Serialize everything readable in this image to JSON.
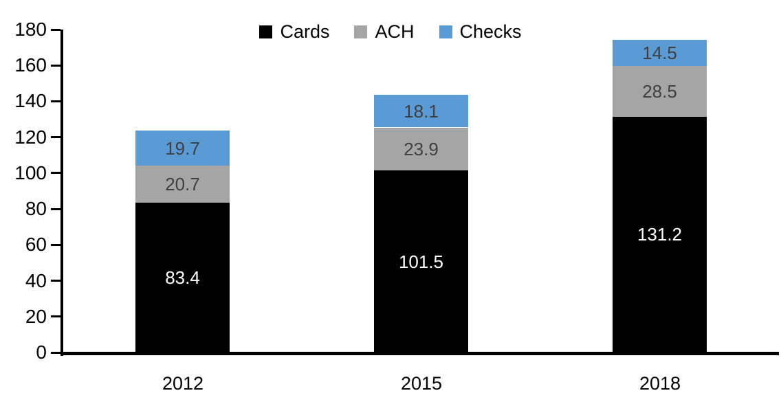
{
  "chart_data": {
    "type": "bar",
    "stacked": true,
    "title": "",
    "xlabel": "",
    "ylabel": "",
    "categories": [
      "2012",
      "2015",
      "2018"
    ],
    "series": [
      {
        "name": "Cards",
        "color": "#000000",
        "label_color": "#FFFFFF",
        "values": [
          83.4,
          101.5,
          131.2
        ]
      },
      {
        "name": "ACH",
        "color": "#A5A5A5",
        "label_color": "#404040",
        "values": [
          20.7,
          23.9,
          28.5
        ]
      },
      {
        "name": "Checks",
        "color": "#5B9BD5",
        "label_color": "#404040",
        "values": [
          19.7,
          18.1,
          14.5
        ]
      }
    ],
    "value_labels": {
      "Cards": [
        "83.4",
        "101.5",
        "131.2"
      ],
      "ACH": [
        "20.7",
        "23.9",
        "28.5"
      ],
      "Checks": [
        "19.7",
        "18.1",
        "14.5"
      ]
    },
    "ylim": [
      0,
      180
    ],
    "yticks": [
      0,
      20,
      40,
      60,
      80,
      100,
      120,
      140,
      160,
      180
    ],
    "legend_position": "top",
    "legend_labels": [
      "Cards",
      "ACH",
      "Checks"
    ],
    "grid": false,
    "axis_color": "#000000",
    "background_color": "#FFFFFF"
  }
}
